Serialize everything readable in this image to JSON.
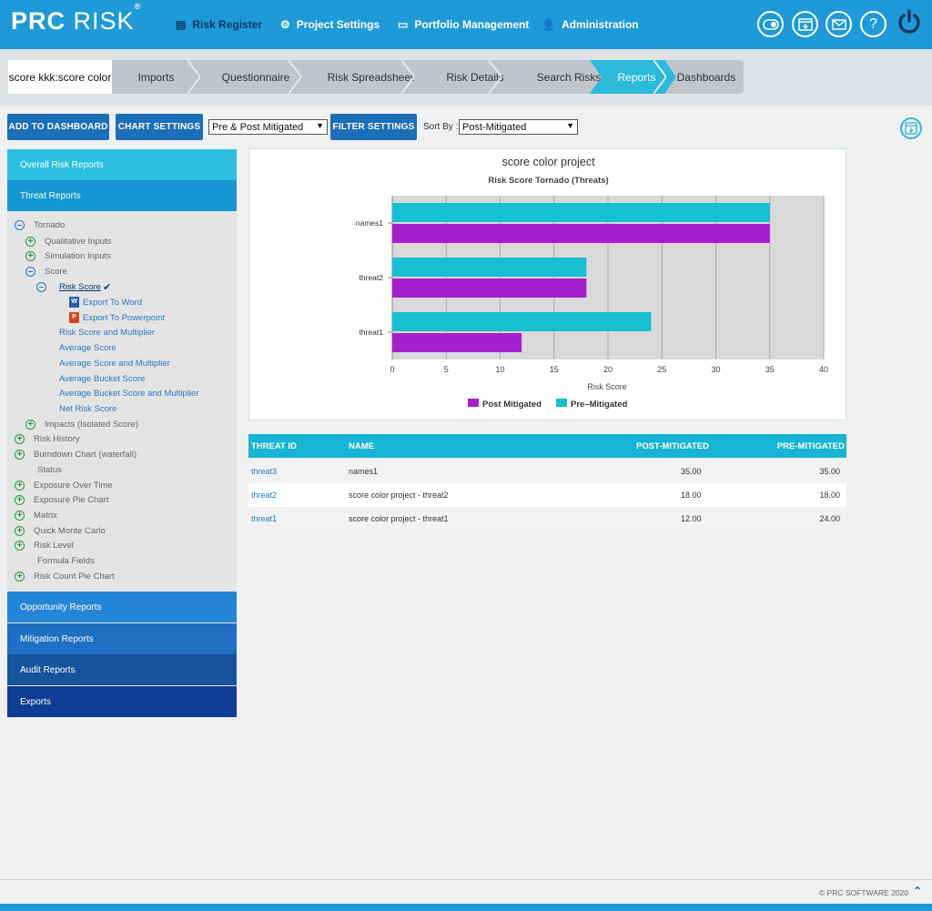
{
  "brand": {
    "prc": "PRC",
    "risk": "RISK",
    "reg": "®"
  },
  "topnav": [
    {
      "label": "Risk Register",
      "icon": "▤"
    },
    {
      "label": "Project Settings",
      "icon": "⚙"
    },
    {
      "label": "Portfolio Management",
      "icon": "▭"
    },
    {
      "label": "Administration",
      "icon": "👤"
    }
  ],
  "header_icons": [
    "toggle-icon",
    "export-window-icon",
    "mail-icon",
    "help-icon",
    "power-icon"
  ],
  "project_name": "score kkk:score color",
  "steps": [
    "Imports",
    "Questionnaire",
    "Risk Spreadsheet",
    "Risk Details",
    "Search Risks",
    "Reports",
    "Dashboards"
  ],
  "active_step": "Reports",
  "toolbar": {
    "add_dashboard": "ADD TO DASHBOARD",
    "chart_settings": "CHART SETTINGS",
    "mitigation_select": "Pre & Post Mitigated",
    "filter_settings": "FILTER SETTINGS",
    "sort_label": "Sort By :",
    "sort_select": "Post-Mitigated"
  },
  "sidebar": {
    "overall": "Overall Risk Reports",
    "threat": "Threat Reports",
    "opportunity": "Opportunity Reports",
    "mitigation": "Mitigation Reports",
    "audit": "Audit Reports",
    "exports": "Exports",
    "tree": {
      "tornado": "Tornado",
      "qualitative": "Qualitative Inputs",
      "simulation": "Simulation Inputs",
      "score": "Score",
      "risk_score": "Risk Score",
      "export_word": "Export To Word",
      "export_ppt": "Export To Powerpoint",
      "risk_score_mult": "Risk Score and Multiplier",
      "average_score": "Average Score",
      "average_score_mult": "Average Score and Multiplier",
      "average_bucket": "Average Bucket Score",
      "average_bucket_mult": "Average Bucket Score and Multiplier",
      "net_risk": "Net Risk Score",
      "impacts": "Impacts (Isolated Score)",
      "risk_history": "Risk History",
      "burndown": "Burndown Chart (waterfall)",
      "status": "Status",
      "exposure_time": "Exposure Over Time",
      "exposure_pie": "Exposure Pie Chart",
      "matrix": "Matrix",
      "quick_monte": "Quick Monte Carlo",
      "risk_level": "Risk Level",
      "formula": "Formula Fields",
      "risk_count_pie": "Risk Count Pie Chart"
    }
  },
  "chart_data": {
    "type": "bar",
    "orientation": "horizontal",
    "title": "score color project",
    "subtitle": "Risk Score Tornado (Threats)",
    "categories": [
      "names1",
      "threat2",
      "threat1"
    ],
    "series": [
      {
        "name": "Pre–Mitigated",
        "values": [
          35,
          18,
          24
        ],
        "color": "#17bfd2"
      },
      {
        "name": "Post Mitigated",
        "values": [
          35,
          18,
          12
        ],
        "color": "#a51fd1"
      }
    ],
    "legend_order": [
      "Post Mitigated",
      "Pre–Mitigated"
    ],
    "xlabel": "Risk Score",
    "ylabel": "",
    "xlim": [
      0,
      40
    ],
    "xticks": [
      0,
      5,
      10,
      15,
      20,
      25,
      30,
      35,
      40
    ],
    "grid": true,
    "legend_position": "bottom"
  },
  "table": {
    "headers": [
      "THREAT ID",
      "NAME",
      "POST-MITIGATED",
      "PRE-MITIGATED"
    ],
    "rows": [
      {
        "id": "threat3",
        "name": "names1",
        "post": "35.00",
        "pre": "35.00"
      },
      {
        "id": "threat2",
        "name": "score color project - threat2",
        "post": "18.00",
        "pre": "18.00"
      },
      {
        "id": "threat1",
        "name": "score color project - threat1",
        "post": "12.00",
        "pre": "24.00"
      }
    ]
  },
  "footer": {
    "copyright": "© PRC SOFTWARE 2020"
  }
}
